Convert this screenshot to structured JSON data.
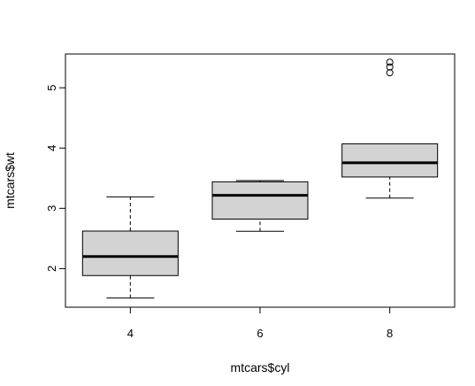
{
  "chart_data": {
    "type": "boxplot",
    "title": "",
    "xlabel": "mtcars$cyl",
    "ylabel": "mtcars$wt",
    "categories": [
      "4",
      "6",
      "8"
    ],
    "ylim": [
      1.36,
      5.56
    ],
    "yticks": [
      "2",
      "3",
      "4",
      "5"
    ],
    "grid": false,
    "box_fill": "#d3d3d3",
    "line_color": "#000000",
    "boxes": [
      {
        "category": "4",
        "whisker_low": 1.513,
        "q1": 1.885,
        "median": 2.2,
        "q3": 2.623,
        "whisker_high": 3.19,
        "outliers": []
      },
      {
        "category": "6",
        "whisker_low": 2.62,
        "q1": 2.822,
        "median": 3.215,
        "q3": 3.44,
        "whisker_high": 3.46,
        "outliers": []
      },
      {
        "category": "8",
        "whisker_low": 3.17,
        "q1": 3.52,
        "median": 3.755,
        "q3": 4.07,
        "whisker_high": 4.07,
        "outliers": [
          5.25,
          5.345,
          5.424
        ]
      }
    ]
  }
}
